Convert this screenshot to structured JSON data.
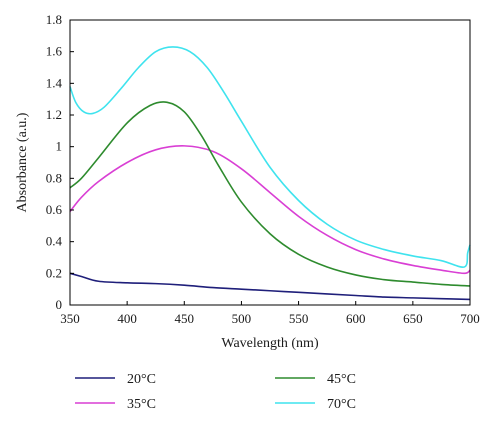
{
  "chart_data": {
    "type": "line",
    "xlabel": "Wavelength (nm)",
    "ylabel": "Absorbance (a.u.)",
    "xlim": [
      350,
      700
    ],
    "ylim": [
      0,
      1.8
    ],
    "xticks": [
      350,
      400,
      450,
      500,
      550,
      600,
      650,
      700
    ],
    "yticks": [
      0,
      0.2,
      0.4,
      0.6,
      0.8,
      1,
      1.2,
      1.4,
      1.6,
      1.8
    ],
    "xtick_labels": [
      "350",
      "400",
      "450",
      "500",
      "550",
      "600",
      "650",
      "700"
    ],
    "ytick_labels": [
      "0",
      "0.2",
      "0.4",
      "0.6",
      "0.8",
      "1",
      "1.2",
      "1.4",
      "1.6",
      "1.8"
    ],
    "grid": false,
    "legend_position": "bottom",
    "series": [
      {
        "name": "20°C",
        "color": "#1f1f7a",
        "x": [
          350,
          360,
          375,
          400,
          425,
          450,
          475,
          500,
          525,
          550,
          575,
          600,
          625,
          650,
          675,
          700
        ],
        "y": [
          0.2,
          0.18,
          0.15,
          0.14,
          0.135,
          0.125,
          0.11,
          0.1,
          0.09,
          0.08,
          0.07,
          0.06,
          0.05,
          0.045,
          0.04,
          0.035
        ]
      },
      {
        "name": "35°C",
        "color": "#d93fd4",
        "x": [
          350,
          360,
          375,
          400,
          425,
          450,
          475,
          500,
          525,
          550,
          575,
          600,
          625,
          650,
          675,
          695,
          700
        ],
        "y": [
          0.59,
          0.68,
          0.78,
          0.9,
          0.98,
          1.005,
          0.97,
          0.86,
          0.71,
          0.56,
          0.44,
          0.35,
          0.29,
          0.25,
          0.22,
          0.2,
          0.22
        ]
      },
      {
        "name": "45°C",
        "color": "#2e8b2e",
        "x": [
          350,
          360,
          375,
          400,
          420,
          435,
          450,
          465,
          480,
          500,
          525,
          550,
          575,
          600,
          625,
          650,
          675,
          700
        ],
        "y": [
          0.74,
          0.8,
          0.93,
          1.15,
          1.26,
          1.28,
          1.22,
          1.07,
          0.88,
          0.65,
          0.45,
          0.32,
          0.24,
          0.19,
          0.16,
          0.145,
          0.13,
          0.12
        ]
      },
      {
        "name": "70°C",
        "color": "#3fe3ee",
        "x": [
          350,
          355,
          362,
          370,
          380,
          395,
          410,
          425,
          440,
          455,
          470,
          485,
          500,
          525,
          550,
          575,
          600,
          625,
          650,
          675,
          695,
          698,
          700
        ],
        "y": [
          1.38,
          1.28,
          1.22,
          1.21,
          1.25,
          1.37,
          1.5,
          1.6,
          1.63,
          1.6,
          1.5,
          1.34,
          1.16,
          0.87,
          0.66,
          0.51,
          0.41,
          0.35,
          0.31,
          0.28,
          0.24,
          0.33,
          0.38
        ]
      }
    ]
  }
}
